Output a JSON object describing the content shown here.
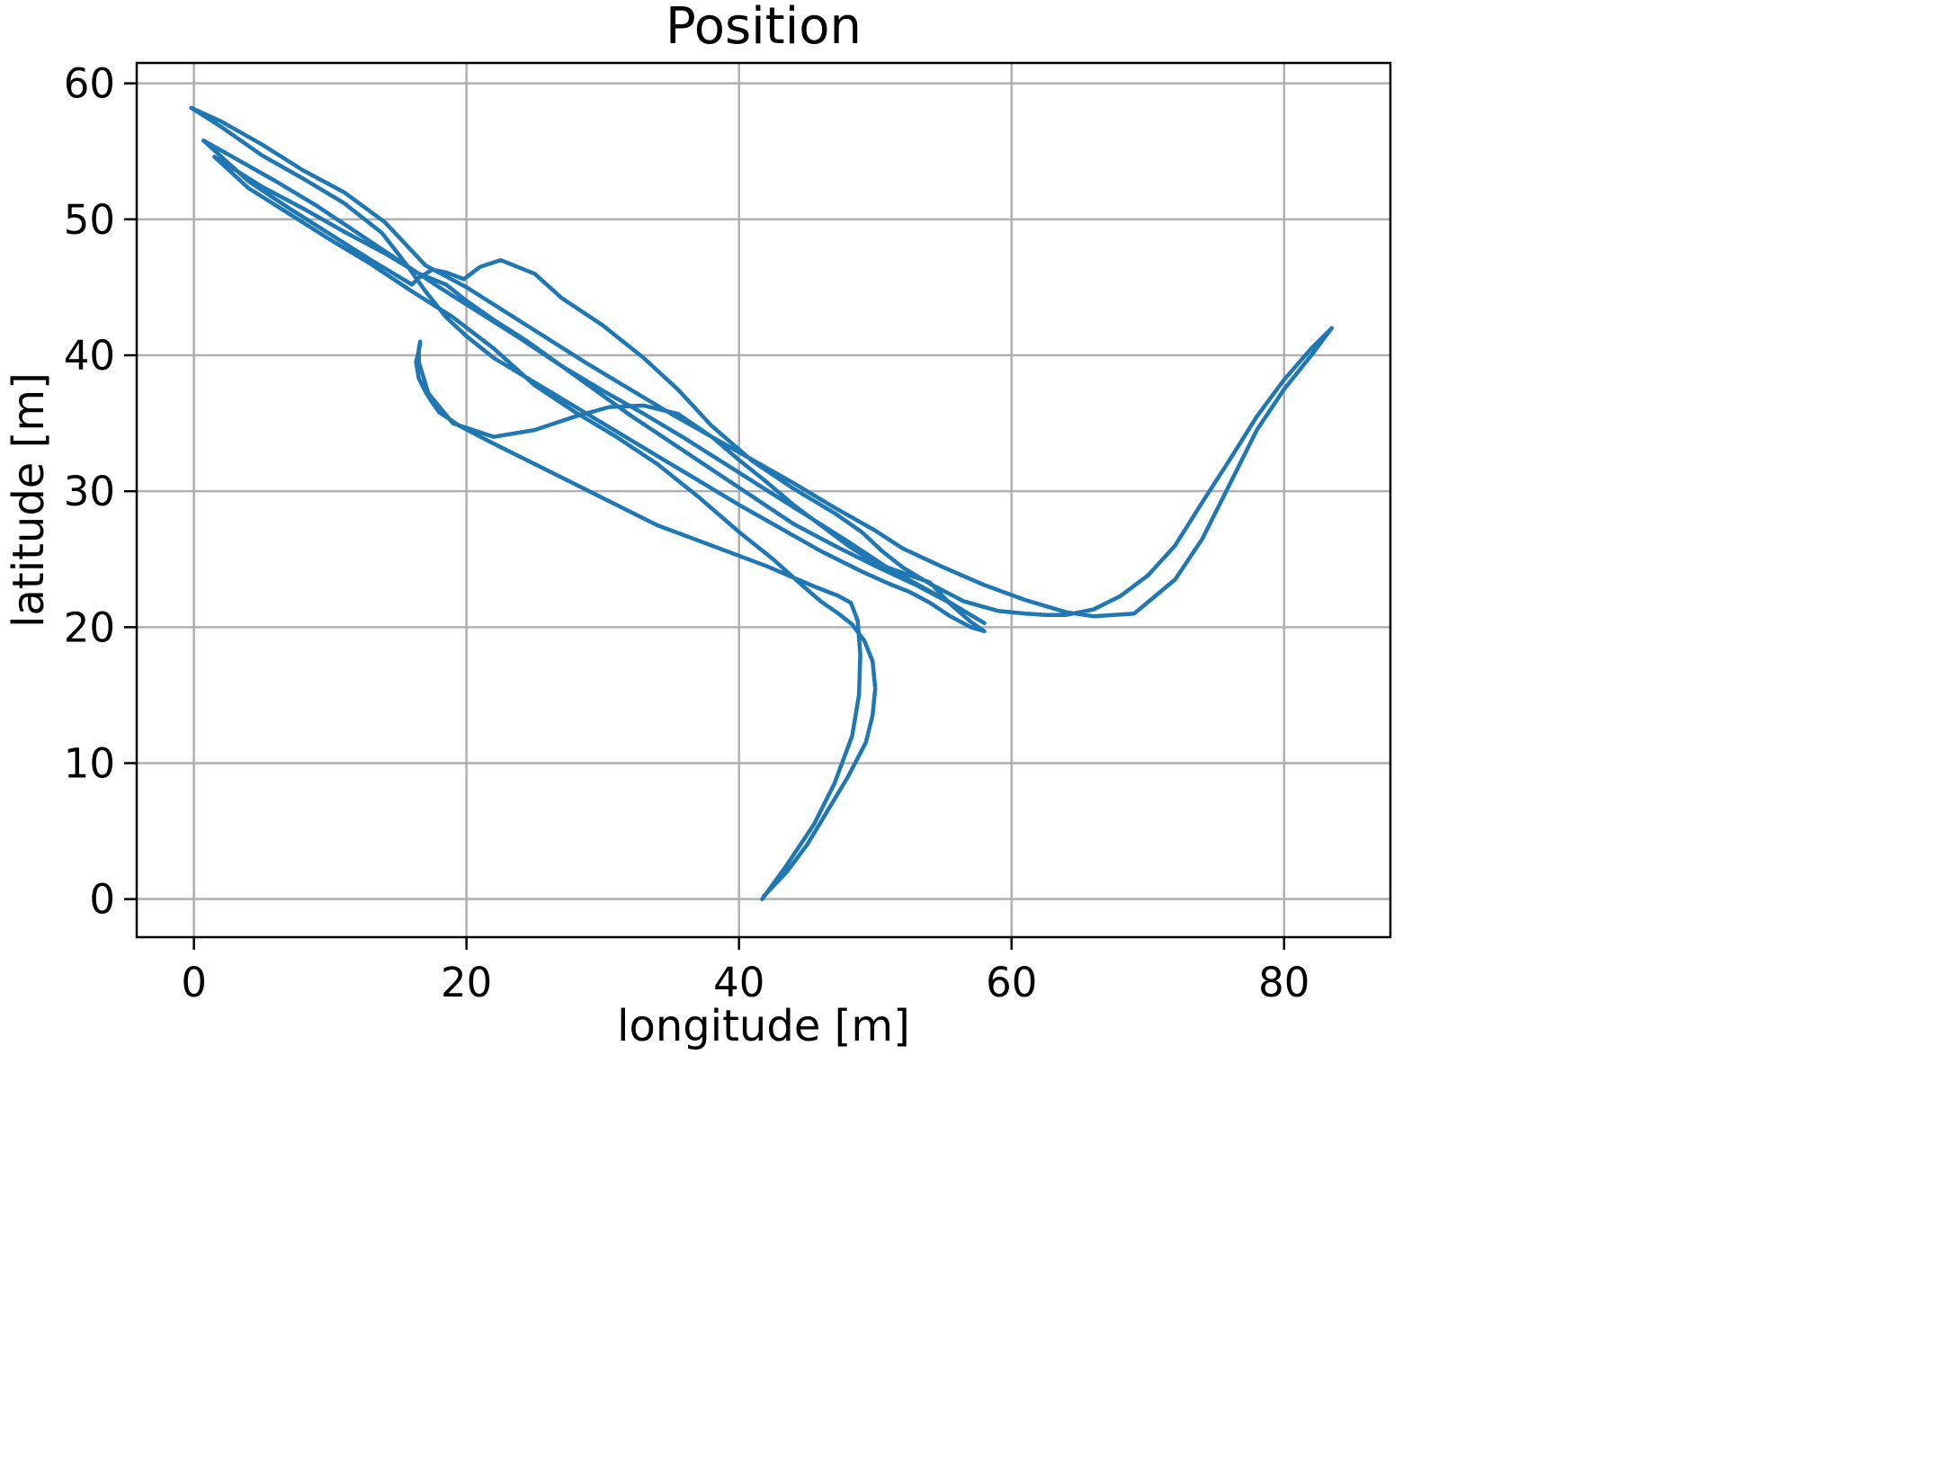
{
  "chart_data": {
    "type": "line",
    "title": "Position",
    "xlabel": "longitude [m]",
    "ylabel": "latitude [m]",
    "xlim": [
      -4.2,
      87.8
    ],
    "ylim": [
      -2.8,
      61.5
    ],
    "xticks": [
      0,
      20,
      40,
      60,
      80
    ],
    "yticks": [
      0,
      10,
      20,
      30,
      40,
      50,
      60
    ],
    "grid": true,
    "colors": {
      "series": "#1f77b4"
    },
    "series": [
      {
        "x": [
          41.7,
          43.5,
          45.5,
          47.0,
          48.3,
          48.8,
          48.9,
          48.7,
          48.2,
          47.3,
          45.5,
          42.0,
          38.0,
          34.0,
          30.0,
          26.0,
          22.0,
          19.5,
          18.0,
          17.5,
          17.0,
          16.5,
          16.3,
          16.6,
          16.6,
          16.5,
          16.5,
          17.2,
          19.0,
          22.0,
          25.0,
          28.0,
          30.5,
          33.0,
          35.5,
          38.0,
          40.0,
          42.0,
          44.0,
          46.0,
          48.0,
          50.0,
          52.0,
          54.0,
          55.5,
          57.0,
          58.0,
          57.0,
          55.5,
          54.0,
          52.5,
          51.0,
          49.0,
          46.0,
          43.0,
          40.0,
          37.0,
          34.0,
          31.0,
          28.0,
          25.0,
          22.0,
          20.0,
          18.5,
          17.0,
          15.5,
          13.8,
          11.0,
          8.0,
          5.0,
          2.0,
          -0.2,
          2.0,
          5.0,
          8.0,
          11.0,
          14.0,
          17.0,
          20.0,
          23.0,
          26.0,
          29.0,
          32.0,
          35.0,
          38.0,
          41.0,
          44.0,
          47.0,
          50.0,
          52.0,
          55.0,
          58.0,
          61.0,
          64.0,
          66.0,
          69.0,
          72.0,
          74.0,
          76.0,
          78.0,
          80.0,
          82.0,
          83.5,
          82.0,
          80.0,
          78.0,
          76.0,
          74.0,
          72.0,
          70.0,
          68.0,
          66.0,
          64.0,
          62.5,
          61.0,
          59.0,
          56.5,
          54.0,
          52.0,
          50.5,
          49.0,
          47.0,
          44.0,
          41.0,
          38.0,
          35.5,
          33.0,
          30.0,
          27.0,
          25.0,
          22.5,
          21.0,
          19.8,
          18.5,
          17.5,
          16.5,
          16.0,
          15.0,
          13.0,
          10.0,
          7.0,
          4.0,
          0.7,
          3.0,
          6.0,
          9.0,
          12.0,
          15.0,
          18.0,
          21.0,
          24.0,
          27.0,
          30.0,
          33.0,
          36.0,
          39.0,
          42.0,
          45.0,
          48.0,
          51.0,
          53.0,
          55.0,
          57.0,
          58.0,
          56.0,
          53.0,
          50.0,
          47.0,
          44.0,
          41.0,
          38.0,
          35.0,
          32.0,
          29.5,
          27.0,
          24.5,
          22.0,
          20.0,
          18.5,
          16.5,
          14.0,
          11.0,
          8.0,
          5.0,
          1.5,
          4.0,
          7.0,
          10.0,
          13.0,
          16.0,
          19.0,
          22.0,
          25.0,
          28.0,
          31.0,
          34.0,
          37.0,
          40.0,
          42.5,
          44.5,
          46.0,
          47.3,
          48.3,
          49.2,
          49.8,
          50.0,
          49.8,
          49.5,
          49.3,
          48.0,
          46.5,
          45.0,
          43.5,
          41.8
        ],
        "y": [
          0.0,
          2.5,
          5.5,
          8.5,
          12.0,
          15.0,
          18.0,
          20.5,
          21.8,
          22.3,
          23.0,
          24.5,
          26.0,
          27.5,
          29.5,
          31.5,
          33.5,
          34.8,
          35.8,
          36.5,
          37.3,
          38.3,
          39.5,
          40.8,
          41.0,
          40.5,
          39.5,
          37.2,
          35.0,
          34.0,
          34.5,
          35.5,
          36.2,
          36.3,
          35.7,
          34.0,
          32.3,
          30.7,
          29.0,
          27.5,
          26.0,
          24.7,
          24.0,
          23.3,
          21.7,
          20.4,
          19.7,
          20.0,
          20.8,
          21.8,
          22.6,
          23.2,
          24.1,
          25.6,
          27.3,
          29.0,
          30.8,
          32.6,
          34.4,
          36.2,
          38.0,
          39.8,
          41.4,
          42.8,
          44.7,
          46.8,
          49.0,
          51.2,
          53.0,
          54.7,
          56.8,
          58.2,
          57.2,
          55.5,
          53.6,
          52.0,
          49.8,
          46.6,
          45.0,
          43.1,
          41.2,
          39.3,
          37.5,
          35.7,
          34.0,
          32.3,
          30.6,
          28.8,
          27.1,
          25.8,
          24.4,
          23.1,
          22.0,
          21.1,
          20.8,
          21.0,
          23.5,
          26.5,
          30.5,
          34.5,
          37.5,
          40.0,
          42.0,
          40.5,
          38.2,
          35.5,
          32.3,
          29.2,
          26.0,
          23.8,
          22.3,
          21.3,
          20.9,
          20.9,
          21.0,
          21.2,
          21.9,
          23.2,
          24.4,
          25.6,
          27.0,
          28.4,
          30.2,
          32.2,
          34.8,
          37.5,
          39.8,
          42.2,
          44.2,
          46.0,
          47.0,
          46.5,
          45.6,
          46.1,
          46.3,
          45.7,
          45.2,
          45.8,
          47.0,
          48.9,
          50.8,
          52.8,
          55.8,
          54.5,
          52.8,
          51.0,
          49.0,
          47.0,
          45.0,
          43.1,
          41.2,
          39.2,
          37.4,
          35.7,
          33.9,
          32.0,
          30.1,
          28.2,
          26.3,
          24.3,
          23.2,
          22.1,
          20.9,
          20.3,
          21.5,
          23.1,
          24.5,
          26.0,
          27.6,
          29.6,
          31.6,
          33.6,
          35.6,
          37.4,
          39.2,
          41.0,
          42.6,
          44.0,
          45.2,
          46.0,
          47.5,
          49.1,
          50.8,
          52.4,
          54.6,
          52.3,
          50.4,
          48.5,
          46.7,
          44.7,
          42.8,
          40.5,
          37.8,
          35.8,
          34.0,
          32.0,
          29.6,
          27.0,
          25.0,
          23.2,
          21.9,
          21.0,
          20.2,
          19.0,
          17.5,
          15.5,
          13.5,
          12.3,
          11.5,
          9.0,
          6.5,
          4.0,
          2.0,
          0.2
        ]
      }
    ]
  }
}
